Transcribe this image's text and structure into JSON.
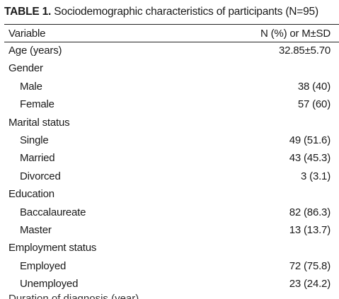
{
  "caption": {
    "label": "TABLE 1.",
    "text": " Sociodemographic characteristics of participants (N=95)"
  },
  "columns": {
    "variable": "Variable",
    "value": "N (%) or M±SD"
  },
  "rows": [
    {
      "label": "Age (years)",
      "value": "32.85±5.70",
      "indent": false
    },
    {
      "label": "Gender",
      "value": "",
      "indent": false
    },
    {
      "label": "Male",
      "value": "38 (40)",
      "indent": true
    },
    {
      "label": "Female",
      "value": "57 (60)",
      "indent": true
    },
    {
      "label": "Marital status",
      "value": "",
      "indent": false
    },
    {
      "label": "Single",
      "value": "49 (51.6)",
      "indent": true
    },
    {
      "label": "Married",
      "value": "43 (45.3)",
      "indent": true
    },
    {
      "label": "Divorced",
      "value": "3 (3.1)",
      "indent": true
    },
    {
      "label": "Education",
      "value": "",
      "indent": false
    },
    {
      "label": "Baccalaureate",
      "value": "82 (86.3)",
      "indent": true
    },
    {
      "label": "Master",
      "value": "13 (13.7)",
      "indent": true
    },
    {
      "label": "Employment status",
      "value": "",
      "indent": false
    },
    {
      "label": "Employed",
      "value": "72 (75.8)",
      "indent": true
    },
    {
      "label": "Unemployed",
      "value": "23 (24.2)",
      "indent": true
    }
  ],
  "cutoff_row": "Duration of diagnosis (year)"
}
